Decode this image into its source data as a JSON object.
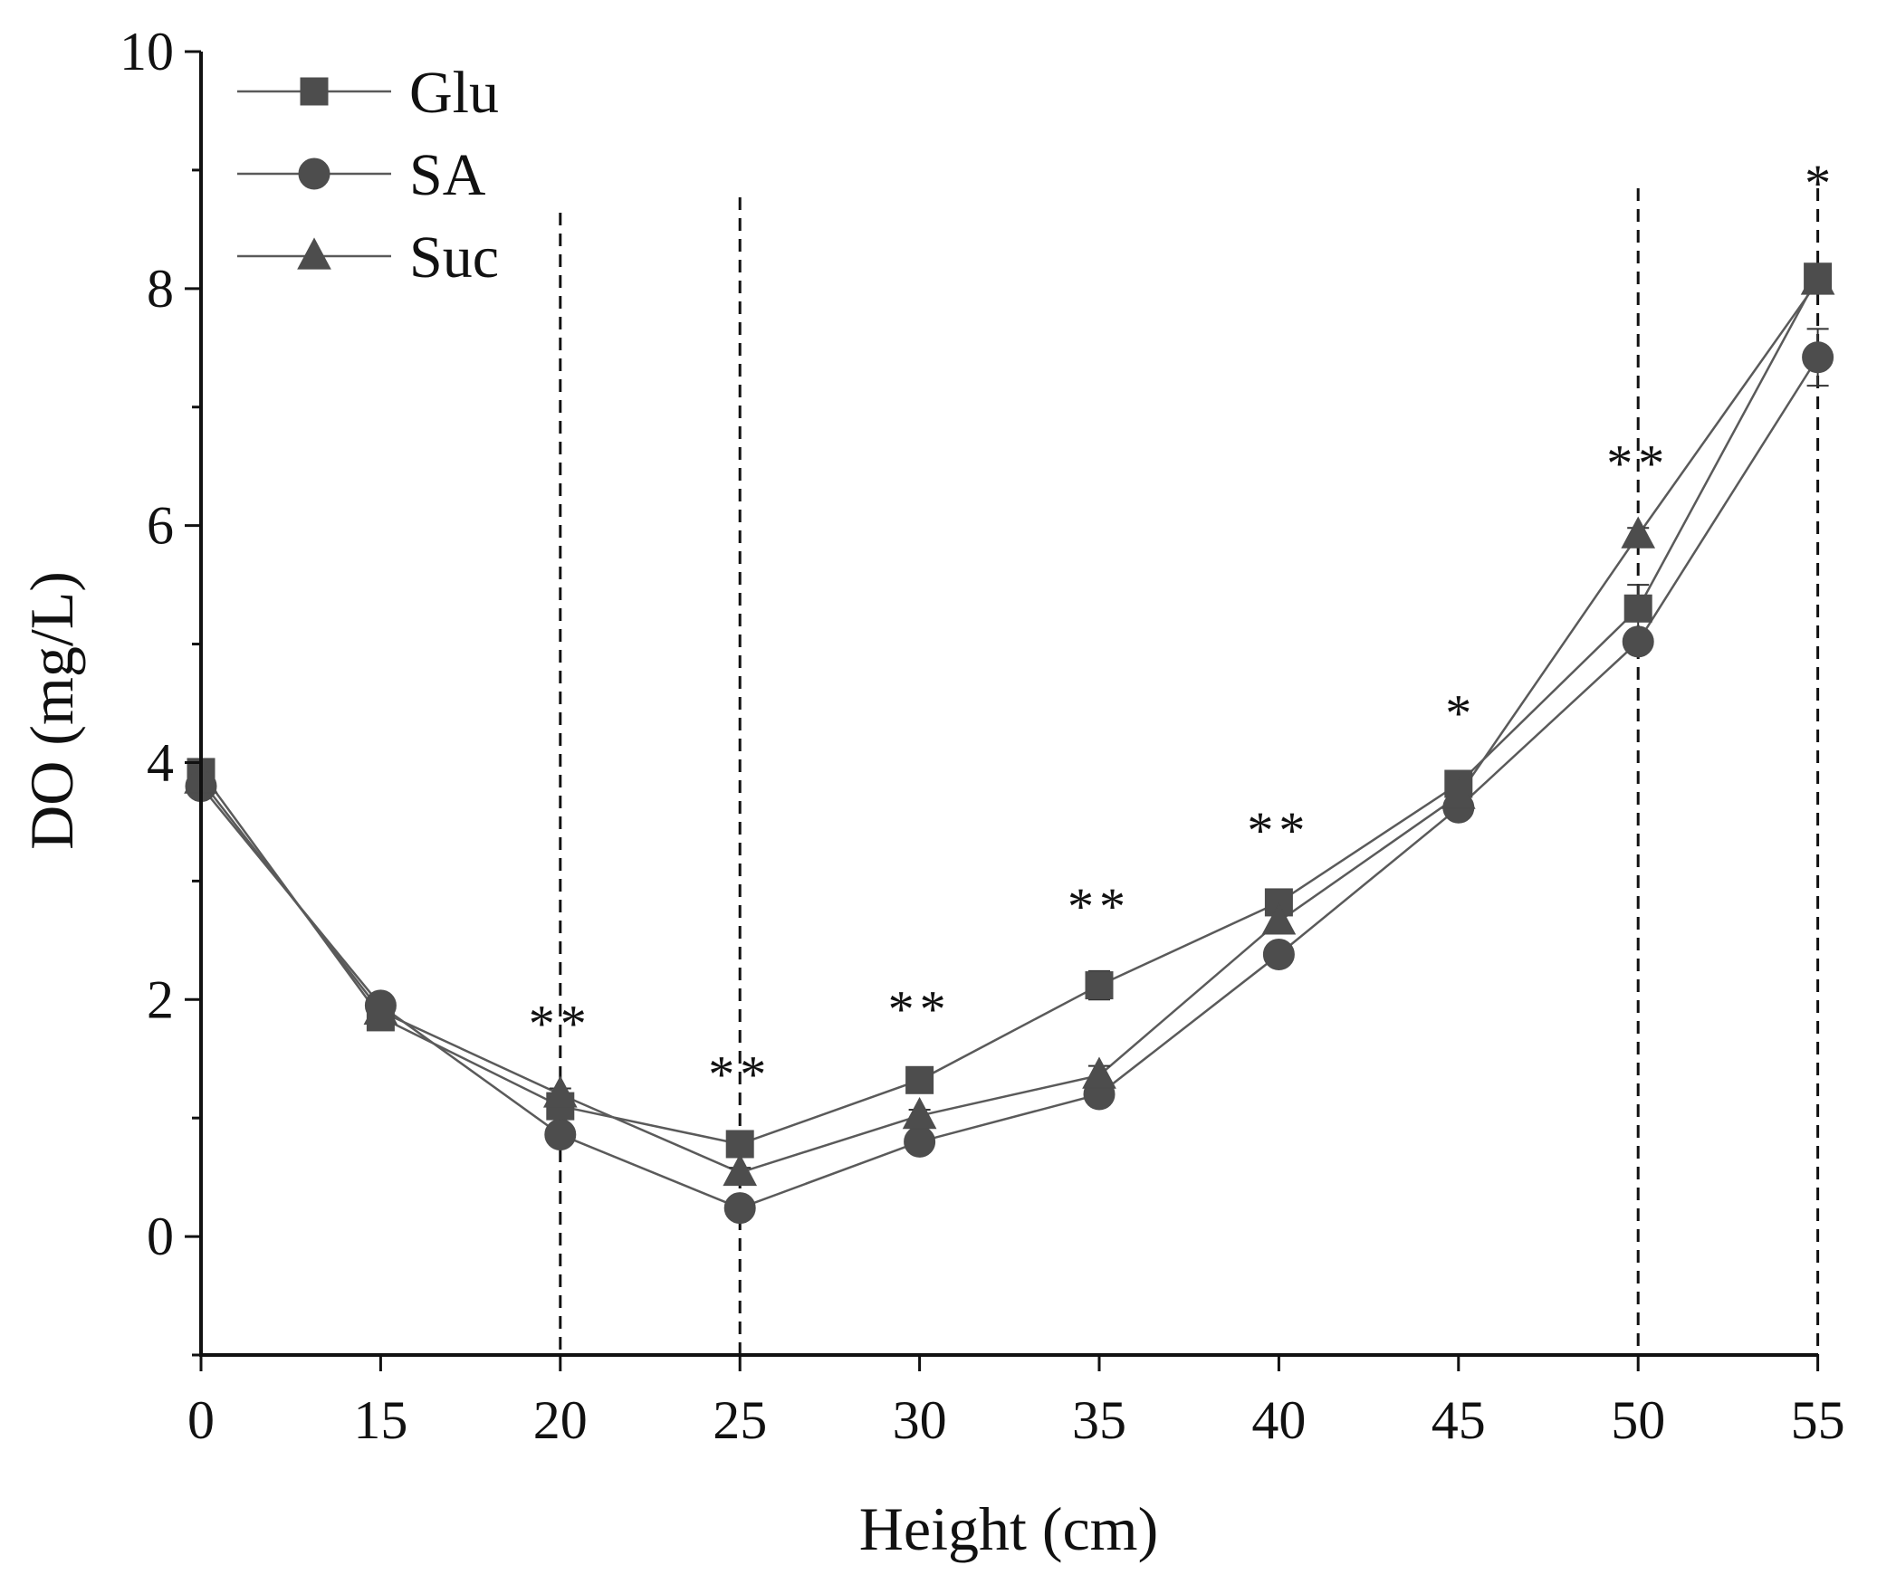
{
  "chart_data": {
    "type": "line",
    "title": "",
    "xlabel": "Height (cm)",
    "ylabel": "DO (mg/L)",
    "categories": [
      "0",
      "15",
      "20",
      "25",
      "30",
      "35",
      "40",
      "45",
      "50",
      "55"
    ],
    "ylim": [
      -1,
      10
    ],
    "yticks": [
      0,
      2,
      4,
      6,
      8,
      10
    ],
    "grid": false,
    "legend_position": "top-left",
    "series": [
      {
        "name": "Glu",
        "marker": "square",
        "values": [
          3.92,
          1.85,
          1.1,
          0.78,
          1.32,
          2.12,
          2.82,
          3.82,
          5.3,
          8.1
        ],
        "errors": [
          0.03,
          0.05,
          0.04,
          0.04,
          0.05,
          0.12,
          0.06,
          0.05,
          0.2,
          0.1
        ]
      },
      {
        "name": "SA",
        "marker": "circle",
        "values": [
          3.8,
          1.95,
          0.86,
          0.24,
          0.8,
          1.2,
          2.38,
          3.62,
          5.02,
          7.42
        ],
        "errors": [
          0.03,
          0.05,
          0.04,
          0.03,
          0.04,
          0.05,
          0.06,
          0.05,
          0.06,
          0.24
        ]
      },
      {
        "name": "Suc",
        "marker": "triangle",
        "values": [
          3.85,
          1.9,
          1.2,
          0.54,
          1.02,
          1.36,
          2.66,
          3.72,
          5.92,
          8.06
        ],
        "errors": [
          0.03,
          0.05,
          0.05,
          0.04,
          0.05,
          0.08,
          0.06,
          0.05,
          0.06,
          0.1
        ]
      }
    ],
    "dashed_lines_at": [
      "20",
      "25",
      "50",
      "55"
    ],
    "significance": [
      {
        "x": "20",
        "label": "**"
      },
      {
        "x": "25",
        "label": "**"
      },
      {
        "x": "30",
        "label": "**"
      },
      {
        "x": "35",
        "label": "**"
      },
      {
        "x": "40",
        "label": "**"
      },
      {
        "x": "45",
        "label": "*"
      },
      {
        "x": "50",
        "label": "**"
      },
      {
        "x": "55",
        "label": "*"
      }
    ]
  }
}
